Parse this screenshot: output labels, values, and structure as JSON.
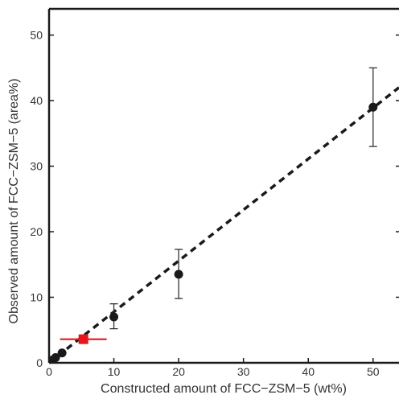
{
  "chart_data": {
    "type": "scatter",
    "title": "",
    "xlabel": "Constructed amount of FCC−ZSM−5 (wt%)",
    "ylabel": "Observed amount of FCC−ZSM−5 (area%)",
    "xlim": [
      0,
      54
    ],
    "ylim": [
      0,
      54
    ],
    "xticks": [
      0,
      10,
      20,
      30,
      40,
      50
    ],
    "yticks": [
      0,
      10,
      20,
      30,
      40,
      50
    ],
    "grid": false,
    "colors": {
      "points": "#1a1a1a",
      "highlight": "#e8161b",
      "fit_line": "#1a1a1a"
    },
    "series": [
      {
        "marker": "circle",
        "points": [
          {
            "x": 0.5,
            "y": 0.4,
            "err_low": 0,
            "err_high": 0
          },
          {
            "x": 1,
            "y": 0.8,
            "err_low": 0,
            "err_high": 0
          },
          {
            "x": 2,
            "y": 1.5,
            "err_low": 0,
            "err_high": 0
          },
          {
            "x": 10,
            "y": 7.0,
            "err_low": 1.8,
            "err_high": 2.0
          },
          {
            "x": 20,
            "y": 13.5,
            "err_low": 3.7,
            "err_high": 3.8
          },
          {
            "x": 50,
            "y": 39.0,
            "err_low": 6.0,
            "err_high": 6.0
          }
        ]
      },
      {
        "marker": "square",
        "points": [
          {
            "x": 5.3,
            "y": 3.6,
            "xerr_low": 3.6,
            "xerr_high": 3.6
          }
        ]
      }
    ],
    "fit_line": {
      "style": "dashed",
      "x": [
        0,
        54
      ],
      "y": [
        0,
        42
      ]
    }
  }
}
